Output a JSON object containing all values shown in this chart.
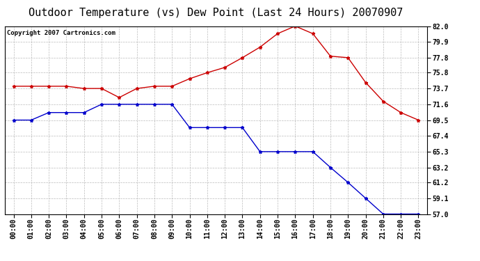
{
  "title": "Outdoor Temperature (vs) Dew Point (Last 24 Hours) 20070907",
  "copyright_text": "Copyright 2007 Cartronics.com",
  "hours": [
    "00:00",
    "01:00",
    "02:00",
    "03:00",
    "04:00",
    "05:00",
    "06:00",
    "07:00",
    "08:00",
    "09:00",
    "10:00",
    "11:00",
    "12:00",
    "13:00",
    "14:00",
    "15:00",
    "16:00",
    "17:00",
    "18:00",
    "19:00",
    "20:00",
    "21:00",
    "22:00",
    "23:00"
  ],
  "temp": [
    74.0,
    74.0,
    74.0,
    74.0,
    73.7,
    73.7,
    72.5,
    73.7,
    74.0,
    74.0,
    75.0,
    75.8,
    76.5,
    77.8,
    79.2,
    81.0,
    82.0,
    81.0,
    78.0,
    77.8,
    74.5,
    72.0,
    70.5,
    69.5
  ],
  "dewpoint": [
    69.5,
    69.5,
    70.5,
    70.5,
    70.5,
    71.6,
    71.6,
    71.6,
    71.6,
    71.6,
    68.5,
    68.5,
    68.5,
    68.5,
    65.3,
    65.3,
    65.3,
    65.3,
    63.2,
    61.2,
    59.1,
    57.0,
    57.0,
    57.0
  ],
  "temp_color": "#cc0000",
  "dewpoint_color": "#0000cc",
  "background_color": "#ffffff",
  "plot_bg_color": "#ffffff",
  "grid_color": "#aaaaaa",
  "ylim_min": 57.0,
  "ylim_max": 82.0,
  "yticks": [
    57.0,
    59.1,
    61.2,
    63.2,
    65.3,
    67.4,
    69.5,
    71.6,
    73.7,
    75.8,
    77.8,
    79.9,
    82.0
  ],
  "title_fontsize": 11,
  "tick_fontsize": 7,
  "copyright_fontsize": 6.5
}
